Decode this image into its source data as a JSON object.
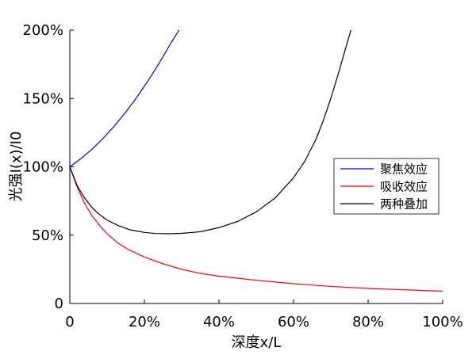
{
  "chart_data": {
    "type": "line",
    "xlabel": "深度x/L",
    "ylabel": "光强I(x)/I0",
    "xlim": [
      0,
      100
    ],
    "ylim": [
      0,
      200
    ],
    "x_ticks": [
      0,
      20,
      40,
      60,
      80,
      100
    ],
    "x_tick_labels": [
      "0",
      "20%",
      "40%",
      "60%",
      "80%",
      "100%"
    ],
    "y_ticks": [
      0,
      50,
      100,
      150,
      200
    ],
    "y_tick_labels": [
      "0",
      "50%",
      "100%",
      "150%",
      "200%"
    ],
    "grid": false,
    "legend_position": "right",
    "series": [
      {
        "name": "聚焦效应",
        "color": "#0000ff",
        "x": [
          0,
          3,
          6,
          9,
          12,
          15,
          18,
          21,
          24,
          27,
          29.5
        ],
        "y": [
          100,
          106,
          113,
          121,
          130,
          140,
          151,
          163,
          176,
          190,
          201
        ]
      },
      {
        "name": "吸收效应",
        "color": "#ff0000",
        "x": [
          0,
          2,
          4,
          6,
          8,
          10,
          13,
          16,
          20,
          25,
          30,
          35,
          40,
          50,
          60,
          70,
          80,
          90,
          100
        ],
        "y": [
          100,
          85,
          73,
          64,
          57,
          51,
          44,
          39,
          34,
          29,
          25,
          22,
          20,
          17,
          14.5,
          12.5,
          11,
          10,
          9
        ]
      },
      {
        "name": "两种叠加",
        "color": "#000000",
        "x": [
          0,
          2,
          4,
          6,
          8,
          10,
          13,
          16,
          20,
          23,
          26.5,
          30,
          35,
          40,
          45,
          50,
          55,
          60,
          63,
          66,
          68,
          70,
          72,
          74,
          75.5
        ],
        "y": [
          100,
          86,
          77,
          70,
          65,
          61,
          57,
          54,
          52,
          51.2,
          51,
          51.3,
          52.5,
          55.5,
          60,
          67,
          77,
          92,
          104,
          120,
          134,
          150,
          168,
          187,
          201
        ]
      }
    ]
  }
}
